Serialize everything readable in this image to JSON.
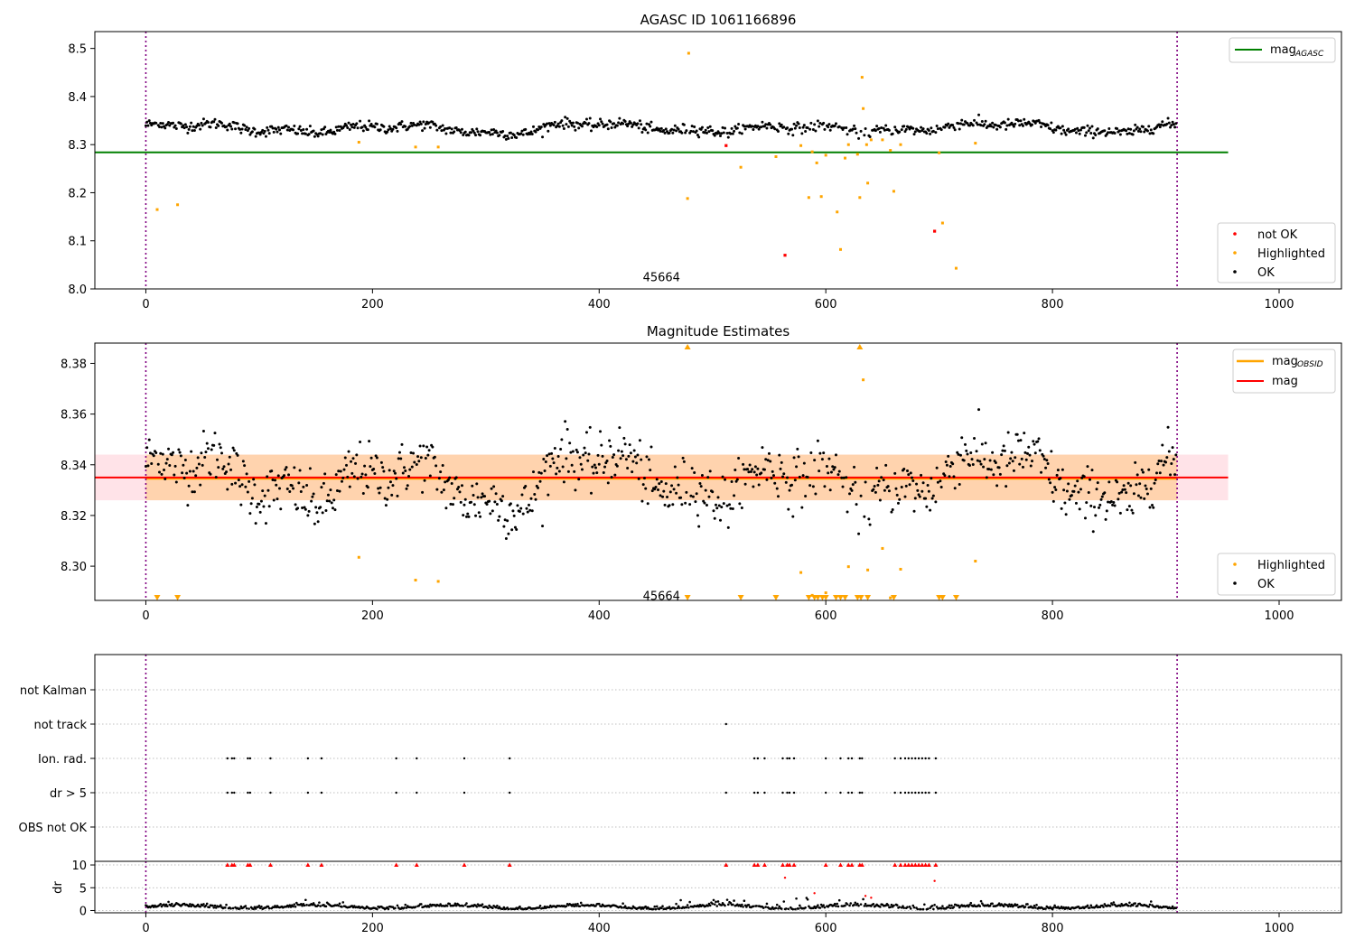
{
  "figure": {
    "title": "AGASC ID 1061166896"
  },
  "chart_data": [
    {
      "id": "mag_agasc",
      "type": "scatter",
      "title": "AGASC ID 1061166896",
      "xlim": [
        -45,
        1055
      ],
      "ylim": [
        8.0,
        8.535
      ],
      "xticks": [
        0,
        200,
        400,
        600,
        800,
        1000
      ],
      "yticks": [
        8.0,
        8.1,
        8.2,
        8.3,
        8.4,
        8.5
      ],
      "obsid_label": "45664",
      "obsid_label_x": 455,
      "obsid_label_y": 8.025,
      "obs_boundaries": [
        0,
        910
      ],
      "line": {
        "name": "mag_AGASC",
        "label_main": "mag",
        "label_sub": "AGASC",
        "y": 8.284,
        "x": [
          -45,
          955
        ],
        "color": "#008000"
      },
      "band": null,
      "legend_lines_placement": "upper right",
      "legend_points_placement": "lower right",
      "points_legend": [
        "not OK",
        "Highlighted",
        "OK"
      ],
      "ok_model": {
        "n": 910,
        "x_start": 0,
        "x_end": 910
      },
      "highlighted": {
        "color": "#FFA500",
        "x": [
          10,
          28,
          188,
          238,
          258,
          478,
          479,
          525,
          556,
          578,
          585,
          588,
          592,
          596,
          600,
          610,
          613,
          617,
          620,
          628,
          630,
          632,
          633,
          636,
          637,
          640,
          650,
          657,
          660,
          666,
          700,
          703,
          715,
          732
        ],
        "y": [
          8.165,
          8.175,
          8.305,
          8.295,
          8.295,
          8.188,
          8.49,
          8.253,
          8.275,
          8.298,
          8.19,
          8.285,
          8.262,
          8.192,
          8.278,
          8.16,
          8.082,
          8.272,
          8.3,
          8.28,
          8.19,
          8.44,
          8.375,
          8.3,
          8.22,
          8.31,
          8.31,
          8.288,
          8.203,
          8.3,
          8.283,
          8.137,
          8.043,
          8.303
        ]
      },
      "not_ok": {
        "color": "#FF0000",
        "x": [
          512,
          564,
          696
        ],
        "y": [
          8.298,
          8.07,
          8.12
        ]
      }
    },
    {
      "id": "mag_estimates",
      "type": "scatter",
      "title": "Magnitude Estimates",
      "xlim": [
        -45,
        1055
      ],
      "ylim": [
        8.2865,
        8.388
      ],
      "xticks": [
        0,
        200,
        400,
        600,
        800,
        1000
      ],
      "yticks": [
        8.3,
        8.32,
        8.34,
        8.36,
        8.38
      ],
      "obsid_label": "45664",
      "obsid_label_x": 455,
      "obsid_label_y": 8.2885,
      "obs_boundaries": [
        0,
        910
      ],
      "lines": [
        {
          "name": "mag_OBSID",
          "label_main": "mag",
          "label_sub": "OBSID",
          "y": 8.3345,
          "x": [
            0,
            910
          ],
          "color": "#FFA500"
        },
        {
          "name": "mag",
          "label_main": "mag",
          "label_sub": "",
          "y": 8.335,
          "x": [
            -45,
            955
          ],
          "color": "#FF0000"
        }
      ],
      "bands": [
        {
          "y0": 8.326,
          "y1": 8.344,
          "x": [
            -45,
            955
          ],
          "color": "#FFC0CB",
          "opacity": 0.45
        },
        {
          "y0": 8.326,
          "y1": 8.344,
          "x": [
            0,
            910
          ],
          "color": "#FFA500",
          "opacity": 0.25
        }
      ],
      "legend_lines_placement": "upper right",
      "legend_points_placement": "lower right",
      "points_legend": [
        "Highlighted",
        "OK"
      ],
      "ok_model": {
        "n": 910,
        "x_start": 0,
        "x_end": 910
      },
      "highlighted": {
        "color": "#FFA500",
        "x": [
          188,
          238,
          258,
          578,
          588,
          600,
          620,
          633,
          637,
          650,
          657,
          666,
          732
        ],
        "y": [
          8.3035,
          8.2945,
          8.294,
          8.2975,
          8.2885,
          8.2895,
          8.2998,
          8.3735,
          8.2985,
          8.307,
          8.2875,
          8.2988,
          8.302
        ]
      },
      "up_markers": {
        "color": "#FFA500",
        "x": [
          478,
          630
        ]
      },
      "down_markers": {
        "color": "#FFA500",
        "x": [
          10,
          28,
          478,
          525,
          556,
          585,
          590,
          593,
          597,
          600,
          609,
          613,
          617,
          628,
          631,
          637,
          660,
          700,
          703,
          715
        ]
      }
    },
    {
      "id": "flags",
      "type": "scatter",
      "xlim": [
        -45,
        1055
      ],
      "categories": [
        "not Kalman",
        "not track",
        "Ion. rad.",
        "dr > 5",
        "OBS not OK"
      ],
      "obs_boundaries": [
        0,
        910
      ],
      "flags": {
        "not Kalman": [],
        "not track": [
          512
        ],
        "Ion. rad.": [
          72,
          76,
          78,
          90,
          92,
          110,
          143,
          155,
          221,
          239,
          281,
          321,
          537,
          540,
          546,
          562,
          566,
          568,
          572,
          600,
          613,
          620,
          623,
          630,
          632,
          661,
          666,
          670,
          673,
          676,
          679,
          682,
          685,
          688,
          691,
          697
        ],
        "dr > 5": [
          72,
          76,
          78,
          90,
          92,
          110,
          143,
          155,
          221,
          239,
          281,
          321,
          512,
          537,
          540,
          546,
          562,
          566,
          568,
          572,
          600,
          613,
          620,
          623,
          630,
          632,
          661,
          666,
          670,
          673,
          676,
          679,
          682,
          685,
          688,
          691,
          697
        ],
        "OBS not OK": []
      }
    },
    {
      "id": "dr",
      "type": "scatter",
      "ylabel": "dr",
      "xlim": [
        -45,
        1055
      ],
      "ylim": [
        -0.5,
        10.8
      ],
      "xticks": [
        0,
        200,
        400,
        600,
        800,
        1000
      ],
      "yticks": [
        0,
        5,
        10
      ],
      "obs_boundaries": [
        0,
        910
      ],
      "ok_model": {
        "n": 910,
        "x_start": 0,
        "x_end": 910
      },
      "clipped_x": [
        72,
        76,
        78,
        90,
        92,
        110,
        143,
        155,
        221,
        239,
        281,
        321,
        512,
        537,
        540,
        546,
        562,
        566,
        568,
        572,
        600,
        613,
        620,
        623,
        630,
        632,
        661,
        666,
        670,
        673,
        676,
        679,
        682,
        685,
        688,
        691,
        697
      ],
      "clipped_y": 10,
      "mid_red": {
        "x": [
          564,
          696,
          590,
          635,
          640
        ],
        "y": [
          7.2,
          6.5,
          3.8,
          3.2,
          2.8
        ]
      }
    }
  ]
}
